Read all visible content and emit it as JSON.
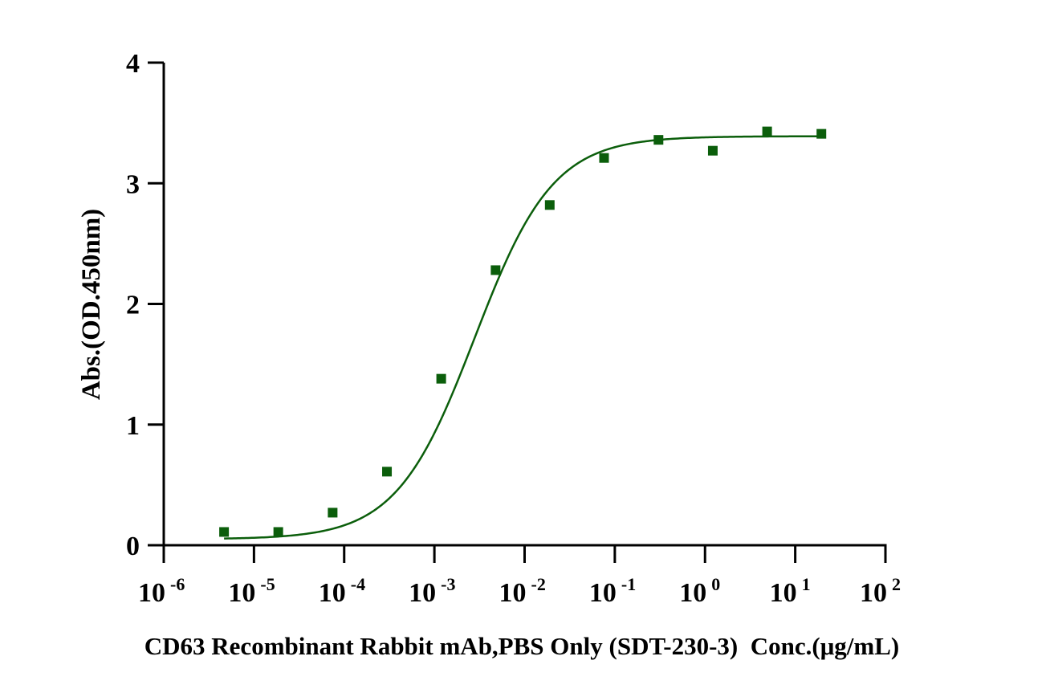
{
  "chart_data": {
    "type": "scatter",
    "title": "",
    "xlabel": "CD63 Recombinant Rabbit mAb,PBS Only (SDT-230-3)  Conc.(μg/mL)",
    "ylabel": "Abs.(OD.450nm)",
    "xscale": "log",
    "xlim": [
      1e-06,
      100
    ],
    "ylim": [
      0,
      4
    ],
    "x_ticks": [
      {
        "base": "10",
        "exp": "-6",
        "value": 1e-06
      },
      {
        "base": "10",
        "exp": "-5",
        "value": 1e-05
      },
      {
        "base": "10",
        "exp": "-4",
        "value": 0.0001
      },
      {
        "base": "10",
        "exp": "-3",
        "value": 0.001
      },
      {
        "base": "10",
        "exp": "-2",
        "value": 0.01
      },
      {
        "base": "10",
        "exp": "-1",
        "value": 0.1
      },
      {
        "base": "10",
        "exp": "0",
        "value": 1
      },
      {
        "base": "10",
        "exp": "1",
        "value": 10
      },
      {
        "base": "10",
        "exp": "2",
        "value": 100
      }
    ],
    "y_ticks": [
      "0",
      "1",
      "2",
      "3",
      "4"
    ],
    "grid": false,
    "color": "#0b5e0b",
    "series": [
      {
        "name": "CD63 Recombinant Rabbit mAb",
        "x": [
          4.66e-06,
          1.86e-05,
          7.45e-05,
          0.000298,
          0.00119,
          0.00477,
          0.019,
          0.076,
          0.305,
          1.22,
          4.88,
          19.5
        ],
        "y": [
          0.11,
          0.11,
          0.27,
          0.61,
          1.38,
          2.28,
          2.82,
          3.21,
          3.36,
          3.27,
          3.43,
          3.41
        ]
      }
    ],
    "fit": {
      "model": "4PL",
      "bottom": 0.05,
      "top": 3.39,
      "ec50": 0.0028,
      "hill": 1.0
    }
  }
}
